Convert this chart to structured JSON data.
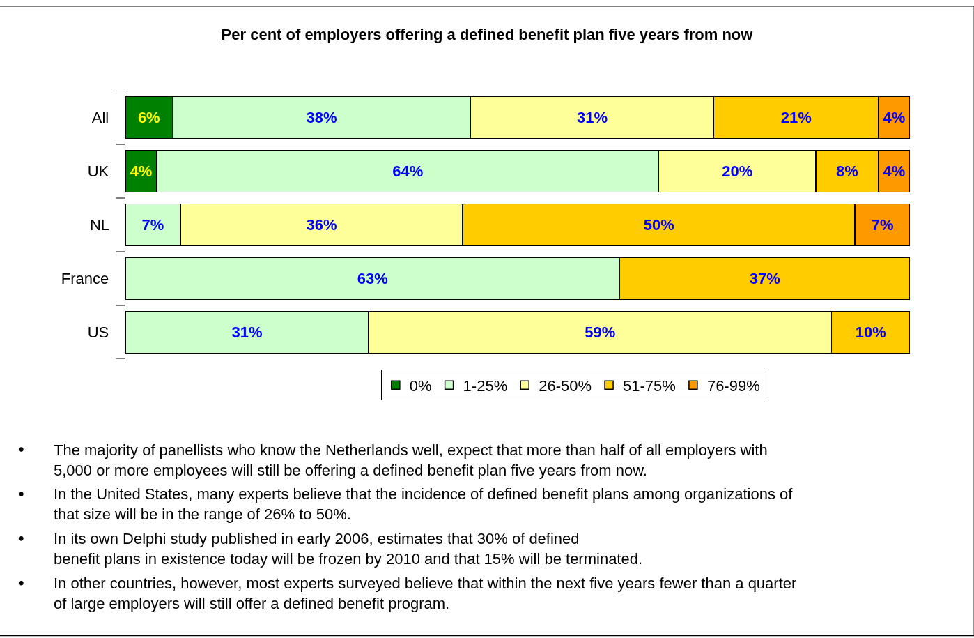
{
  "chart_data": {
    "type": "bar",
    "orientation": "horizontal",
    "stacked": true,
    "tick_labels": "y",
    "legend": "bottom",
    "title": "Per cent of employers offering a defined benefit plan five years from now",
    "categories": [
      "All",
      "UK",
      "NL",
      "France",
      "US"
    ],
    "series": [
      {
        "name": "0%",
        "color": "#008000",
        "values": [
          6,
          4,
          null,
          null,
          null
        ],
        "value_labels": [
          "6%",
          "4%",
          null,
          null,
          null
        ]
      },
      {
        "name": "1-25%",
        "color": "#ccffcc",
        "values": [
          38,
          64,
          7,
          63,
          31
        ],
        "value_labels": [
          "38%",
          "64%",
          "7%",
          "63%",
          "31%"
        ]
      },
      {
        "name": "26-50%",
        "color": "#ffff99",
        "values": [
          31,
          20,
          36,
          null,
          59
        ],
        "value_labels": [
          "31%",
          "20%",
          "36%",
          null,
          "59%"
        ]
      },
      {
        "name": "51-75%",
        "color": "#ffcc00",
        "values": [
          21,
          8,
          50,
          37,
          10
        ],
        "value_labels": [
          "21%",
          "8%",
          "50%",
          "37%",
          "10%"
        ]
      },
      {
        "name": "76-99%",
        "color": "#ff9900",
        "values": [
          4,
          4,
          7,
          null,
          null
        ],
        "value_labels": [
          "4%",
          "4%",
          "7%",
          null,
          null
        ]
      }
    ],
    "annotations": [
      "The majority of panellists who know the Netherlands well, expect that more than half of all employers with\n5,000 or more employees will still be offering a defined benefit plan five years from now.",
      "In the United States, many experts believe that the incidence of defined benefit plans among organizations of\nthat size will be in the range of 26% to 50%.",
      "In its own Delphi study published in early 2006, estimates that 30% of defined\nbenefit plans in existence today will be frozen by 2010 and that 15% will be terminated.",
      "In other countries, however, most experts surveyed believe that within the next five years fewer than a quarter\nof large employers will still offer a defined benefit program."
    ]
  }
}
